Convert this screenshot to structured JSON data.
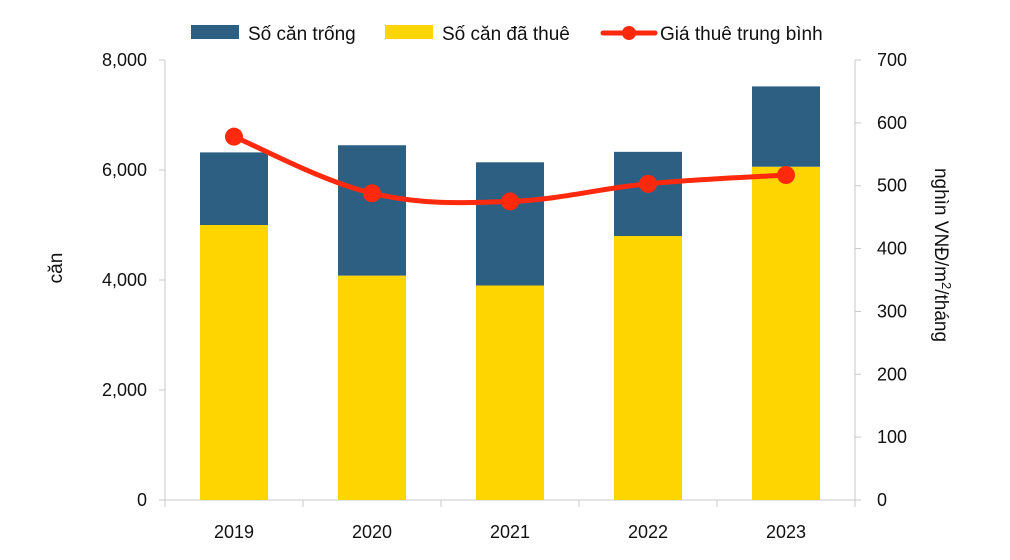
{
  "chart_data": {
    "type": "bar",
    "subtype": "stacked-bar-with-line-secondary-axis",
    "categories": [
      "2019",
      "2020",
      "2021",
      "2022",
      "2023"
    ],
    "series": [
      {
        "name": "Số căn đã thuê",
        "kind": "bar",
        "axis": "left",
        "color": "#FFD500",
        "values": [
          5000,
          4080,
          3900,
          4800,
          6060
        ]
      },
      {
        "name": "Số căn trống",
        "kind": "bar",
        "axis": "left",
        "color": "#2D5F82",
        "values": [
          1320,
          2370,
          2240,
          1530,
          1460
        ]
      },
      {
        "name": "Giá thuê trung bình",
        "kind": "line",
        "axis": "right",
        "color": "#FF2A0D",
        "values": [
          578,
          488,
          475,
          503,
          517
        ]
      }
    ],
    "legend": {
      "placement": "top",
      "order": [
        "Số căn trống",
        "Số căn đã thuê",
        "Giá thuê trung bình"
      ]
    },
    "left_axis": {
      "label": "căn",
      "ylim": [
        0,
        8000
      ],
      "ticks": [
        0,
        2000,
        4000,
        6000,
        8000
      ],
      "tick_labels": [
        "0",
        "2,000",
        "4,000",
        "6,000",
        "8,000"
      ]
    },
    "right_axis": {
      "label_prefix": "nghìn VNĐ/m",
      "label_superscript": "2",
      "label_suffix": "/tháng",
      "ylim": [
        0,
        700
      ],
      "ticks": [
        0,
        100,
        200,
        300,
        400,
        500,
        600,
        700
      ],
      "tick_labels": [
        "0",
        "100",
        "200",
        "300",
        "400",
        "500",
        "600",
        "700"
      ]
    },
    "grid": false
  }
}
